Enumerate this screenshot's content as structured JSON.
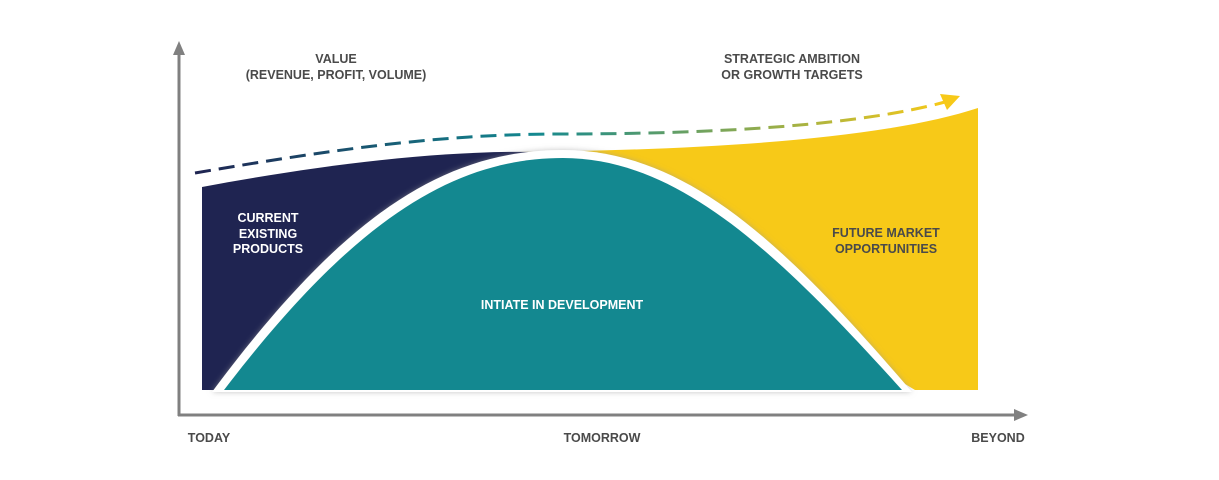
{
  "axis": {
    "y_label": [
      "VALUE",
      "(REVENUE, PROFIT, VOLUME)"
    ],
    "x_labels": [
      "TODAY",
      "TOMORROW",
      "BEYOND"
    ]
  },
  "target": [
    "STRATEGIC AMBITION",
    "OR GROWTH TARGETS"
  ],
  "regions": [
    {
      "label": [
        "CURRENT",
        "EXISTING",
        "PRODUCTS"
      ]
    },
    {
      "label": [
        "INTIATE IN DEVELOPMENT"
      ]
    },
    {
      "label": [
        "FUTURE MARKET",
        "OPPORTUNITIES"
      ]
    }
  ]
}
